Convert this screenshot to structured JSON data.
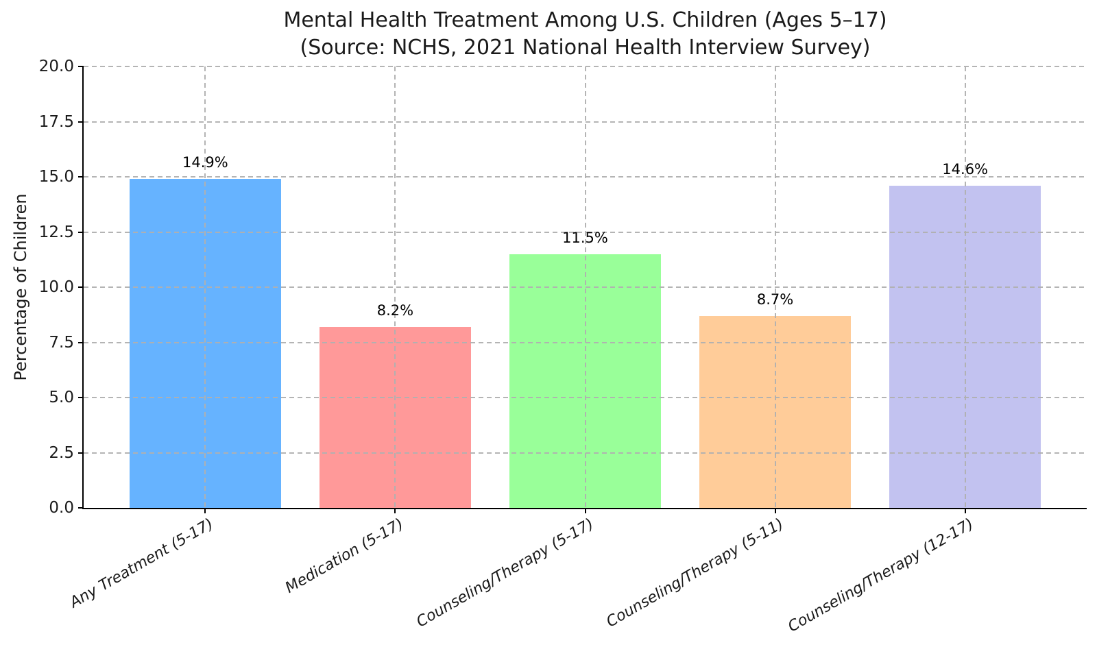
{
  "chart_data": {
    "type": "bar",
    "title": "Mental Health Treatment Among U.S. Children (Ages 5–17)",
    "subtitle": "(Source: NCHS, 2021 National Health Interview Survey)",
    "ylabel": "Percentage of Children",
    "xlabel": "",
    "ylim": [
      0,
      20
    ],
    "yticks": [
      0,
      2.5,
      5,
      7.5,
      10,
      12.5,
      15,
      17.5,
      20
    ],
    "ytick_labels": [
      "0.0",
      "2.5",
      "5.0",
      "7.5",
      "10.0",
      "12.5",
      "15.0",
      "17.5",
      "20.0"
    ],
    "categories": [
      "Any Treatment (5-17)",
      "Medication (5-17)",
      "Counseling/Therapy (5-17)",
      "Counseling/Therapy (5-11)",
      "Counseling/Therapy (12-17)"
    ],
    "values": [
      14.9,
      8.2,
      11.5,
      8.7,
      14.6
    ],
    "bar_labels": [
      "14.9%",
      "8.2%",
      "11.5%",
      "8.7%",
      "14.6%"
    ],
    "bar_colors": [
      "#66b3ff",
      "#ff9999",
      "#99ff99",
      "#ffcc99",
      "#c2c2f0"
    ],
    "grid": {
      "visible": true,
      "style": "dashed",
      "color": "#b0b0b0",
      "axes": "both",
      "drawn_above_bars": true
    },
    "legend": {
      "visible": false
    },
    "x_tick_rotation_deg": 30,
    "x_tick_style": "italic",
    "background": "#ffffff"
  }
}
